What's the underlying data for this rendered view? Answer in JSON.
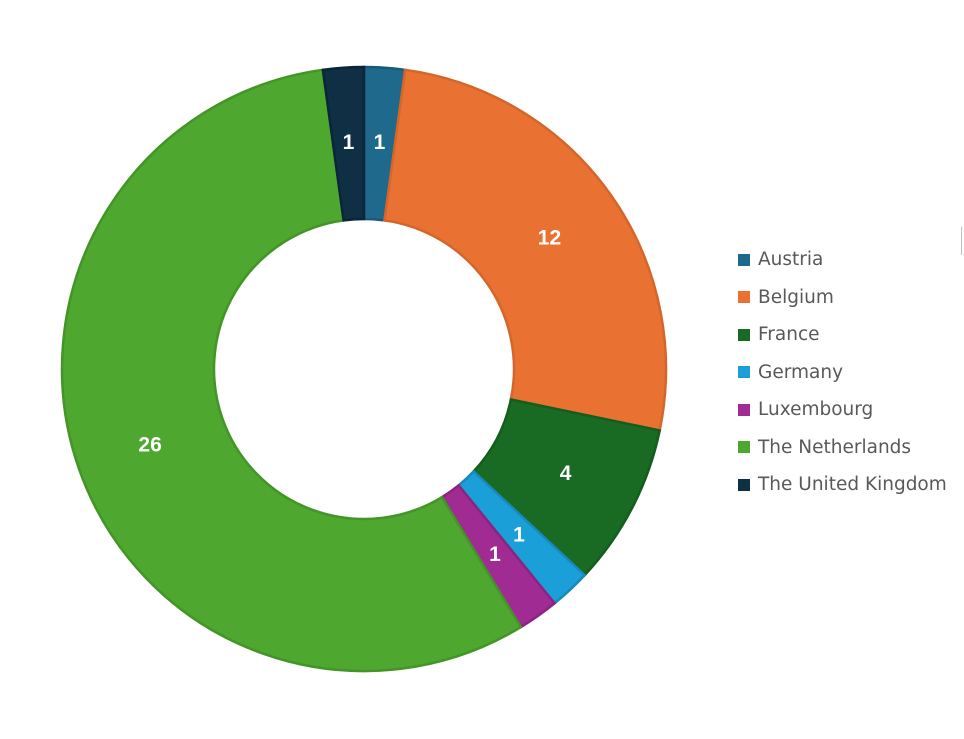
{
  "chart_data": {
    "type": "pie",
    "variant": "doughnut",
    "categories": [
      "Austria",
      "Belgium",
      "France",
      "Germany",
      "Luxembourg",
      "The Netherlands",
      "The United Kingdom"
    ],
    "values": [
      1,
      12,
      4,
      1,
      1,
      26,
      1
    ],
    "value_labels": [
      "1",
      "12",
      "4",
      "1",
      "1",
      "26",
      "1"
    ],
    "colors": [
      "#1f6a8c",
      "#e97132",
      "#196b24",
      "#1b9fd8",
      "#a02b93",
      "#4ea72e",
      "#0e2f44"
    ],
    "stroke_colors": [
      "#1a5a78",
      "#d4662c",
      "#155c1f",
      "#1789ba",
      "#8a257f",
      "#449427",
      "#0b2638"
    ],
    "start_angle_deg": 0,
    "direction": "clockwise",
    "legend_position": "right"
  }
}
